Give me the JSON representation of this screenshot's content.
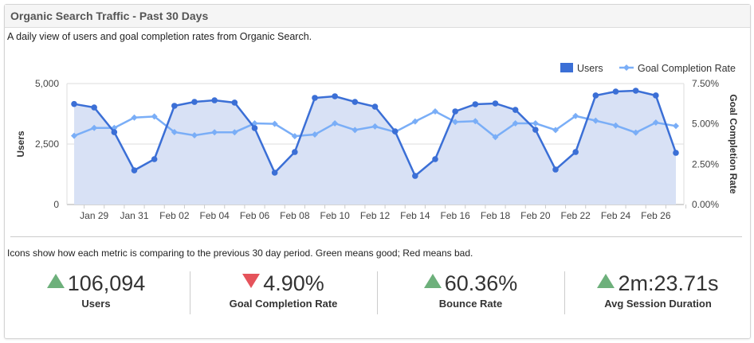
{
  "header": {
    "title": "Organic Search Traffic - Past 30 Days"
  },
  "subtitle": "A daily view of users and goal completion rates from Organic Search.",
  "note": "Icons show how each metric is comparing to the previous 30 day period. Green means good; Red means bad.",
  "colors": {
    "users": "#3b6fd6",
    "goal": "#7aaef7",
    "area": "#d8e1f5",
    "good": "#6db07b",
    "bad": "#e5535b"
  },
  "stats": [
    {
      "value": "106,094",
      "label": "Users",
      "trend": "up"
    },
    {
      "value": "4.90%",
      "label": "Goal Completion Rate",
      "trend": "down"
    },
    {
      "value": "60.36%",
      "label": "Bounce Rate",
      "trend": "up"
    },
    {
      "value": "2m:23.71s",
      "label": "Avg Session Duration",
      "trend": "up"
    }
  ],
  "chart_data": {
    "type": "line",
    "legend_position": "top-right",
    "ylabel": "Users",
    "y2label": "Goal Completion Rate",
    "ylim": [
      0,
      5000
    ],
    "y2lim": [
      0,
      7.5
    ],
    "yticks": [
      "0",
      "2,500",
      "5,000"
    ],
    "y2ticks": [
      "0.00%",
      "2.50%",
      "5.00%",
      "7.50%"
    ],
    "xticklabels": [
      "Jan 29",
      "Jan 31",
      "Feb 02",
      "Feb 04",
      "Feb 06",
      "Feb 08",
      "Feb 10",
      "Feb 12",
      "Feb 14",
      "Feb 16",
      "Feb 18",
      "Feb 20",
      "Feb 22",
      "Feb 24",
      "Feb 26"
    ],
    "x": [
      "Jan 28",
      "Jan 29",
      "Jan 30",
      "Jan 31",
      "Feb 01",
      "Feb 02",
      "Feb 03",
      "Feb 04",
      "Feb 05",
      "Feb 06",
      "Feb 07",
      "Feb 08",
      "Feb 09",
      "Feb 10",
      "Feb 11",
      "Feb 12",
      "Feb 13",
      "Feb 14",
      "Feb 15",
      "Feb 16",
      "Feb 17",
      "Feb 18",
      "Feb 19",
      "Feb 20",
      "Feb 21",
      "Feb 22",
      "Feb 23",
      "Feb 24",
      "Feb 25",
      "Feb 26",
      "Feb 27"
    ],
    "series": [
      {
        "name": "Users",
        "type": "area-line",
        "axis": "left",
        "values": [
          4155,
          4013,
          2993,
          1414,
          1875,
          4079,
          4243,
          4309,
          4211,
          3158,
          1316,
          2171,
          4408,
          4474,
          4243,
          4046,
          3026,
          1184,
          1875,
          3849,
          4145,
          4178,
          3914,
          3092,
          1447,
          2171,
          4507,
          4671,
          4704,
          4507,
          2138
        ]
      },
      {
        "name": "Goal Completion Rate",
        "type": "line",
        "axis": "right",
        "values": [
          4.26,
          4.75,
          4.75,
          5.39,
          5.46,
          4.49,
          4.29,
          4.48,
          4.48,
          5.03,
          5.0,
          4.24,
          4.34,
          5.03,
          4.62,
          4.84,
          4.5,
          5.15,
          5.77,
          5.12,
          5.17,
          4.18,
          5.03,
          5.03,
          4.62,
          5.49,
          5.2,
          4.9,
          4.46,
          5.08,
          4.87
        ]
      }
    ]
  }
}
